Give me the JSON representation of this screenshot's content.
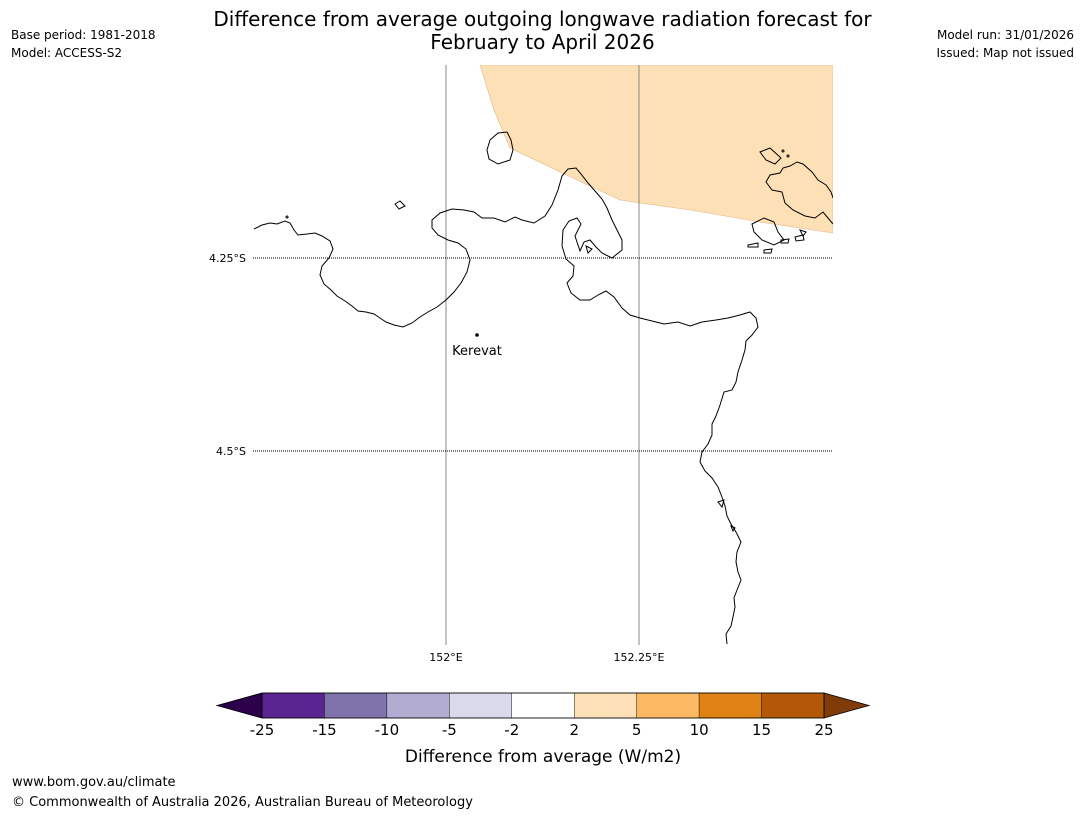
{
  "title_line1": "Difference from average outgoing longwave radiation forecast for",
  "title_line2": "February to April 2026",
  "meta_left": {
    "base_period": "Base period: 1981-2018",
    "model": "Model: ACCESS-S2"
  },
  "meta_right": {
    "model_run": "Model run: 31/01/2026",
    "issued": "Issued: Map not issued"
  },
  "map": {
    "lat_labels": [
      "4.25°S",
      "4.5°S"
    ],
    "lon_labels": [
      "152°E",
      "152.25°E"
    ],
    "place": {
      "name": "Kerevat",
      "icon": "location-dot-icon"
    }
  },
  "colorbar": {
    "label": "Difference from average (W/m2)",
    "ticks": [
      "-25",
      "-15",
      "-10",
      "-5",
      "-2",
      "2",
      "5",
      "10",
      "15",
      "25"
    ],
    "bins": [
      {
        "from": -25,
        "to": -15,
        "color": "#5a2590"
      },
      {
        "from": -15,
        "to": -10,
        "color": "#8073ac"
      },
      {
        "from": -10,
        "to": -5,
        "color": "#b2abd2"
      },
      {
        "from": -5,
        "to": -2,
        "color": "#d8daeb"
      },
      {
        "from": -2,
        "to": 2,
        "color": "#ffffff"
      },
      {
        "from": 2,
        "to": 5,
        "color": "#fee0b6"
      },
      {
        "from": 5,
        "to": 10,
        "color": "#fdb863"
      },
      {
        "from": 10,
        "to": 15,
        "color": "#e08214"
      },
      {
        "from": 15,
        "to": 25,
        "color": "#b35806"
      }
    ],
    "under_color": "#2d004b",
    "over_color": "#7f3b08"
  },
  "footer": {
    "url": "www.bom.gov.au/climate",
    "copyright": "© Commonwealth of Australia 2026, Australian Bureau of Meteorology"
  }
}
